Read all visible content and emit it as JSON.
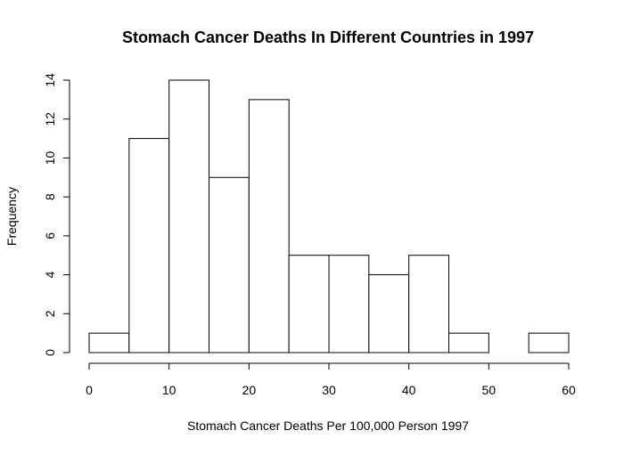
{
  "chart_data": {
    "type": "bar",
    "title": "Stomach Cancer Deaths In Different Countries in 1997",
    "xlabel": "Stomach Cancer Deaths Per 100,000 Person 1997",
    "ylabel": "Frequency",
    "bin_edges": [
      0,
      5,
      10,
      15,
      20,
      25,
      30,
      35,
      40,
      45,
      50,
      55,
      60
    ],
    "values": [
      1,
      11,
      14,
      9,
      13,
      5,
      5,
      4,
      5,
      1,
      0,
      1
    ],
    "xlim": [
      0,
      60
    ],
    "ylim": [
      0,
      14
    ],
    "x_ticks": [
      "0",
      "10",
      "20",
      "30",
      "40",
      "50",
      "60"
    ],
    "y_ticks": [
      "0",
      "2",
      "4",
      "6",
      "8",
      "10",
      "12",
      "14"
    ],
    "grid": false,
    "colors": {
      "bar_fill": "#ffffff",
      "bar_stroke": "#000000",
      "axis": "#000000"
    }
  }
}
